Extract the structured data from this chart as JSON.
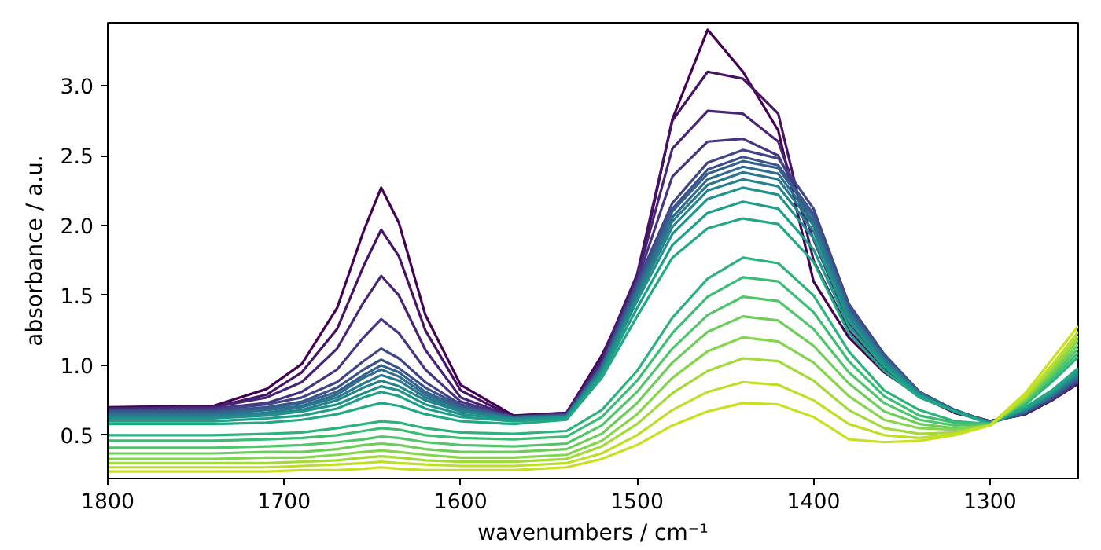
{
  "chart_data": {
    "type": "line",
    "xlabel": "wavenumbers / cm⁻¹",
    "ylabel": "absorbance / a.u.",
    "x": [
      1800,
      1740,
      1710,
      1690,
      1670,
      1655,
      1645,
      1635,
      1620,
      1600,
      1570,
      1540,
      1520,
      1500,
      1480,
      1460,
      1440,
      1420,
      1400,
      1380,
      1360,
      1340,
      1320,
      1300,
      1280,
      1265,
      1250
    ],
    "xlim": [
      1800,
      1250
    ],
    "xticks": [
      1800,
      1700,
      1600,
      1500,
      1400,
      1300
    ],
    "ylim": [
      0.19,
      3.45
    ],
    "yticks": [
      {
        "value": 0.5,
        "label": "0.5"
      },
      {
        "value": 1.0,
        "label": "1.0"
      },
      {
        "value": 1.5,
        "label": "1.5"
      },
      {
        "value": 2.0,
        "label": "2.0"
      },
      {
        "value": 2.5,
        "label": "2.5"
      },
      {
        "value": 3.0,
        "label": "3.0"
      }
    ],
    "line_style": "solid",
    "series": [
      {
        "color": "#440154",
        "values": [
          0.7,
          0.71,
          0.83,
          1.01,
          1.41,
          1.96,
          2.27,
          2.02,
          1.36,
          0.86,
          0.64,
          0.66,
          1.07,
          1.6,
          2.76,
          3.4,
          3.1,
          2.68,
          1.6,
          1.2,
          0.95,
          0.78,
          0.66,
          0.6,
          0.65,
          0.75,
          0.87
        ]
      },
      {
        "color": "#471365",
        "values": [
          0.69,
          0.7,
          0.79,
          0.95,
          1.26,
          1.71,
          1.97,
          1.78,
          1.25,
          0.82,
          0.63,
          0.66,
          1.05,
          1.65,
          2.75,
          3.1,
          3.05,
          2.8,
          1.75,
          1.25,
          0.97,
          0.79,
          0.66,
          0.6,
          0.65,
          0.75,
          0.87
        ]
      },
      {
        "color": "#482475",
        "values": [
          0.69,
          0.7,
          0.77,
          0.88,
          1.12,
          1.45,
          1.64,
          1.5,
          1.11,
          0.77,
          0.63,
          0.65,
          1.03,
          1.62,
          2.55,
          2.82,
          2.8,
          2.6,
          1.9,
          1.3,
          1.0,
          0.8,
          0.67,
          0.6,
          0.65,
          0.75,
          0.88
        ]
      },
      {
        "color": "#463480",
        "values": [
          0.68,
          0.69,
          0.73,
          0.81,
          0.97,
          1.2,
          1.33,
          1.23,
          0.97,
          0.74,
          0.63,
          0.65,
          1.01,
          1.6,
          2.35,
          2.6,
          2.62,
          2.5,
          2.0,
          1.35,
          1.03,
          0.8,
          0.67,
          0.6,
          0.66,
          0.76,
          0.88
        ]
      },
      {
        "color": "#414487",
        "values": [
          0.68,
          0.68,
          0.72,
          0.77,
          0.88,
          1.03,
          1.12,
          1.05,
          0.88,
          0.72,
          0.63,
          0.64,
          1.0,
          1.59,
          2.16,
          2.45,
          2.54,
          2.48,
          2.12,
          1.44,
          1.08,
          0.81,
          0.68,
          0.59,
          0.66,
          0.76,
          0.89
        ]
      },
      {
        "color": "#3b528b",
        "values": [
          0.67,
          0.67,
          0.7,
          0.74,
          0.84,
          0.97,
          1.04,
          0.98,
          0.84,
          0.71,
          0.63,
          0.64,
          0.99,
          1.57,
          2.12,
          2.4,
          2.49,
          2.43,
          2.08,
          1.42,
          1.07,
          0.81,
          0.68,
          0.59,
          0.66,
          0.77,
          0.9
        ]
      },
      {
        "color": "#355f8d",
        "values": [
          0.66,
          0.66,
          0.69,
          0.73,
          0.81,
          0.93,
          1.0,
          0.95,
          0.81,
          0.7,
          0.63,
          0.64,
          0.99,
          1.55,
          2.1,
          2.37,
          2.46,
          2.41,
          2.06,
          1.4,
          1.06,
          0.8,
          0.68,
          0.59,
          0.67,
          0.77,
          0.91
        ]
      },
      {
        "color": "#2f6c8e",
        "values": [
          0.65,
          0.65,
          0.68,
          0.71,
          0.79,
          0.91,
          0.97,
          0.92,
          0.79,
          0.69,
          0.62,
          0.64,
          0.98,
          1.53,
          2.06,
          2.33,
          2.42,
          2.37,
          2.03,
          1.39,
          1.05,
          0.8,
          0.68,
          0.59,
          0.67,
          0.78,
          0.92
        ]
      },
      {
        "color": "#2a788e",
        "values": [
          0.64,
          0.64,
          0.66,
          0.7,
          0.77,
          0.87,
          0.93,
          0.89,
          0.77,
          0.68,
          0.62,
          0.63,
          0.97,
          1.51,
          2.03,
          2.29,
          2.38,
          2.33,
          2.0,
          1.37,
          1.04,
          0.8,
          0.67,
          0.59,
          0.68,
          0.79,
          0.93
        ]
      },
      {
        "color": "#25838e",
        "values": [
          0.63,
          0.63,
          0.65,
          0.68,
          0.75,
          0.84,
          0.89,
          0.85,
          0.75,
          0.67,
          0.62,
          0.63,
          0.96,
          1.49,
          1.99,
          2.25,
          2.33,
          2.28,
          1.96,
          1.35,
          1.03,
          0.79,
          0.67,
          0.59,
          0.68,
          0.79,
          0.94
        ]
      },
      {
        "color": "#21918c",
        "values": [
          0.62,
          0.62,
          0.64,
          0.67,
          0.72,
          0.8,
          0.85,
          0.82,
          0.72,
          0.65,
          0.61,
          0.63,
          0.95,
          1.46,
          1.94,
          2.19,
          2.27,
          2.22,
          1.91,
          1.32,
          1.01,
          0.79,
          0.67,
          0.59,
          0.69,
          0.8,
          0.95
        ]
      },
      {
        "color": "#1f9e89",
        "values": [
          0.6,
          0.6,
          0.62,
          0.64,
          0.69,
          0.77,
          0.81,
          0.78,
          0.69,
          0.63,
          0.6,
          0.62,
          0.93,
          1.41,
          1.86,
          2.09,
          2.17,
          2.12,
          1.83,
          1.28,
          0.99,
          0.78,
          0.67,
          0.58,
          0.69,
          0.81,
          0.97
        ]
      },
      {
        "color": "#22a884",
        "values": [
          0.58,
          0.58,
          0.59,
          0.61,
          0.65,
          0.7,
          0.73,
          0.71,
          0.65,
          0.6,
          0.58,
          0.61,
          0.91,
          1.35,
          1.77,
          1.98,
          2.05,
          2.01,
          1.74,
          1.23,
          0.96,
          0.77,
          0.67,
          0.58,
          0.7,
          0.82,
          0.98
        ]
      },
      {
        "color": "#2db27d",
        "values": [
          0.5,
          0.5,
          0.51,
          0.52,
          0.55,
          0.58,
          0.6,
          0.59,
          0.55,
          0.52,
          0.51,
          0.53,
          0.68,
          0.96,
          1.34,
          1.62,
          1.77,
          1.73,
          1.5,
          1.1,
          0.82,
          0.68,
          0.6,
          0.58,
          0.72,
          0.88,
          1.06
        ]
      },
      {
        "color": "#3dbc74",
        "values": [
          0.46,
          0.46,
          0.47,
          0.48,
          0.5,
          0.53,
          0.55,
          0.54,
          0.5,
          0.48,
          0.47,
          0.49,
          0.63,
          0.89,
          1.23,
          1.49,
          1.63,
          1.6,
          1.38,
          1.03,
          0.78,
          0.64,
          0.59,
          0.58,
          0.73,
          0.9,
          1.09
        ]
      },
      {
        "color": "#51c56a",
        "values": [
          0.41,
          0.41,
          0.42,
          0.43,
          0.45,
          0.47,
          0.49,
          0.48,
          0.45,
          0.43,
          0.42,
          0.44,
          0.57,
          0.81,
          1.12,
          1.36,
          1.49,
          1.46,
          1.26,
          0.95,
          0.73,
          0.61,
          0.57,
          0.58,
          0.74,
          0.92,
          1.12
        ]
      },
      {
        "color": "#6ccd5a",
        "values": [
          0.37,
          0.37,
          0.38,
          0.38,
          0.4,
          0.43,
          0.44,
          0.43,
          0.4,
          0.38,
          0.38,
          0.4,
          0.51,
          0.73,
          1.02,
          1.24,
          1.35,
          1.32,
          1.14,
          0.87,
          0.67,
          0.58,
          0.55,
          0.57,
          0.75,
          0.94,
          1.15
        ]
      },
      {
        "color": "#85d54a",
        "values": [
          0.33,
          0.33,
          0.34,
          0.34,
          0.36,
          0.38,
          0.39,
          0.38,
          0.36,
          0.34,
          0.34,
          0.36,
          0.46,
          0.65,
          0.91,
          1.1,
          1.2,
          1.17,
          1.02,
          0.78,
          0.61,
          0.55,
          0.54,
          0.57,
          0.76,
          0.96,
          1.18
        ]
      },
      {
        "color": "#a2da37",
        "values": [
          0.3,
          0.3,
          0.3,
          0.31,
          0.32,
          0.34,
          0.35,
          0.34,
          0.32,
          0.31,
          0.31,
          0.33,
          0.42,
          0.58,
          0.8,
          0.96,
          1.05,
          1.03,
          0.89,
          0.68,
          0.55,
          0.51,
          0.52,
          0.57,
          0.77,
          0.98,
          1.21
        ]
      },
      {
        "color": "#bddf26",
        "values": [
          0.27,
          0.27,
          0.27,
          0.28,
          0.29,
          0.3,
          0.31,
          0.3,
          0.29,
          0.28,
          0.28,
          0.3,
          0.37,
          0.5,
          0.68,
          0.81,
          0.88,
          0.86,
          0.75,
          0.58,
          0.5,
          0.48,
          0.51,
          0.57,
          0.78,
          1.0,
          1.24
        ]
      },
      {
        "color": "#c8e020",
        "values": [
          0.24,
          0.24,
          0.24,
          0.25,
          0.25,
          0.26,
          0.27,
          0.26,
          0.25,
          0.25,
          0.25,
          0.27,
          0.33,
          0.43,
          0.57,
          0.67,
          0.73,
          0.72,
          0.63,
          0.47,
          0.45,
          0.46,
          0.5,
          0.57,
          0.8,
          1.04,
          1.28
        ]
      }
    ]
  }
}
